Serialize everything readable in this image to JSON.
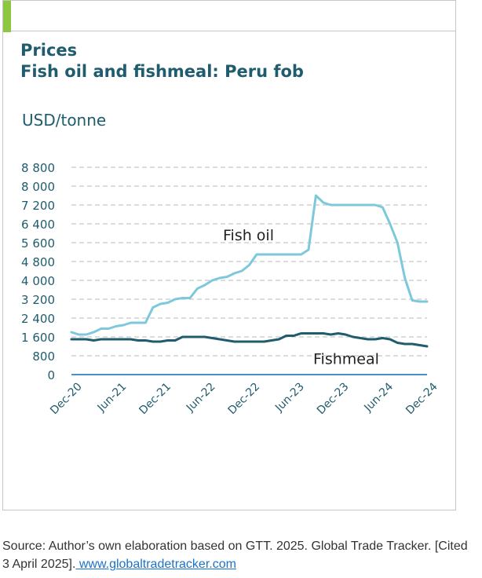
{
  "header": {
    "title": "Prices",
    "subtitle": "Fish oil and fishmeal: Peru fob",
    "unit": "USD/tonne"
  },
  "source": {
    "text": "Source: Author’s own elaboration based on GTT. 2025. Global Trade Tracker. [Cited 3 April 2025].",
    "link_text": " www.globaltradetracker.com"
  },
  "colors": {
    "fish_oil": "#7ec8dc",
    "fishmeal": "#1f5c6e",
    "zero_line": "#4a90c8",
    "grid": "#c8c8c8",
    "axis_text": "#1f5c6e",
    "title": "#1f5c6e",
    "accent": "#8dc63f"
  },
  "chart_data": {
    "type": "line",
    "title": "Prices",
    "subtitle": "Fish oil and fishmeal: Peru fob",
    "ylabel": "USD/tonne",
    "xlabel": "",
    "ylim": [
      0,
      8800
    ],
    "yticks": [
      0,
      800,
      1600,
      2400,
      3200,
      4000,
      4800,
      5600,
      6400,
      7200,
      8000,
      8800
    ],
    "ytick_labels": [
      "0",
      "800",
      "1 600",
      "2 400",
      "3 200",
      "4 000",
      "4 800",
      "5 600",
      "6 400",
      "7 200",
      "8 000",
      "8 800"
    ],
    "xticks": [
      "Dec-20",
      "Jun-21",
      "Dec-21",
      "Jun-22",
      "Dec-22",
      "Jun-23",
      "Dec-23",
      "Jun-24",
      "Dec-24"
    ],
    "grid": true,
    "series": [
      {
        "name": "Fish oil",
        "points": [
          [
            "2020-12",
            1800
          ],
          [
            "2021-01",
            1700
          ],
          [
            "2021-02",
            1700
          ],
          [
            "2021-03",
            1800
          ],
          [
            "2021-04",
            1950
          ],
          [
            "2021-05",
            1950
          ],
          [
            "2021-06",
            2050
          ],
          [
            "2021-07",
            2100
          ],
          [
            "2021-08",
            2200
          ],
          [
            "2021-09",
            2200
          ],
          [
            "2021-10",
            2200
          ],
          [
            "2021-11",
            2850
          ],
          [
            "2021-12",
            3000
          ],
          [
            "2022-01",
            3050
          ],
          [
            "2022-02",
            3200
          ],
          [
            "2022-03",
            3250
          ],
          [
            "2022-04",
            3250
          ],
          [
            "2022-05",
            3650
          ],
          [
            "2022-06",
            3800
          ],
          [
            "2022-07",
            4000
          ],
          [
            "2022-08",
            4100
          ],
          [
            "2022-09",
            4150
          ],
          [
            "2022-10",
            4300
          ],
          [
            "2022-11",
            4400
          ],
          [
            "2022-12",
            4650
          ],
          [
            "2023-01",
            5100
          ],
          [
            "2023-02",
            5100
          ],
          [
            "2023-03",
            5100
          ],
          [
            "2023-04",
            5100
          ],
          [
            "2023-05",
            5100
          ],
          [
            "2023-06",
            5100
          ],
          [
            "2023-07",
            5100
          ],
          [
            "2023-08",
            5300
          ],
          [
            "2023-09",
            7600
          ],
          [
            "2023-10",
            7300
          ],
          [
            "2023-11",
            7200
          ],
          [
            "2023-12",
            7200
          ],
          [
            "2024-01",
            7200
          ],
          [
            "2024-02",
            7200
          ],
          [
            "2024-03",
            7200
          ],
          [
            "2024-04",
            7200
          ],
          [
            "2024-05",
            7200
          ],
          [
            "2024-06",
            7100
          ],
          [
            "2024-07",
            6400
          ],
          [
            "2024-08",
            5600
          ],
          [
            "2024-09",
            4100
          ],
          [
            "2024-10",
            3150
          ],
          [
            "2024-11",
            3100
          ],
          [
            "2024-12",
            3100
          ]
        ]
      },
      {
        "name": "Fishmeal",
        "points": [
          [
            "2020-12",
            1500
          ],
          [
            "2021-01",
            1500
          ],
          [
            "2021-02",
            1500
          ],
          [
            "2021-03",
            1450
          ],
          [
            "2021-04",
            1500
          ],
          [
            "2021-05",
            1500
          ],
          [
            "2021-06",
            1500
          ],
          [
            "2021-07",
            1500
          ],
          [
            "2021-08",
            1500
          ],
          [
            "2021-09",
            1450
          ],
          [
            "2021-10",
            1450
          ],
          [
            "2021-11",
            1400
          ],
          [
            "2021-12",
            1400
          ],
          [
            "2022-01",
            1450
          ],
          [
            "2022-02",
            1450
          ],
          [
            "2022-03",
            1600
          ],
          [
            "2022-04",
            1600
          ],
          [
            "2022-05",
            1600
          ],
          [
            "2022-06",
            1600
          ],
          [
            "2022-07",
            1550
          ],
          [
            "2022-08",
            1500
          ],
          [
            "2022-09",
            1450
          ],
          [
            "2022-10",
            1400
          ],
          [
            "2022-11",
            1400
          ],
          [
            "2022-12",
            1400
          ],
          [
            "2023-01",
            1400
          ],
          [
            "2023-02",
            1400
          ],
          [
            "2023-03",
            1450
          ],
          [
            "2023-04",
            1500
          ],
          [
            "2023-05",
            1650
          ],
          [
            "2023-06",
            1650
          ],
          [
            "2023-07",
            1750
          ],
          [
            "2023-08",
            1750
          ],
          [
            "2023-09",
            1750
          ],
          [
            "2023-10",
            1750
          ],
          [
            "2023-11",
            1700
          ],
          [
            "2023-12",
            1750
          ],
          [
            "2024-01",
            1700
          ],
          [
            "2024-02",
            1600
          ],
          [
            "2024-03",
            1550
          ],
          [
            "2024-04",
            1500
          ],
          [
            "2024-05",
            1500
          ],
          [
            "2024-06",
            1550
          ],
          [
            "2024-07",
            1500
          ],
          [
            "2024-08",
            1350
          ],
          [
            "2024-09",
            1300
          ],
          [
            "2024-10",
            1300
          ],
          [
            "2024-11",
            1250
          ],
          [
            "2024-12",
            1200
          ]
        ]
      }
    ],
    "annotations": [
      {
        "text": "Fish oil",
        "series": "Fish oil"
      },
      {
        "text": "Fishmeal",
        "series": "Fishmeal"
      }
    ]
  }
}
